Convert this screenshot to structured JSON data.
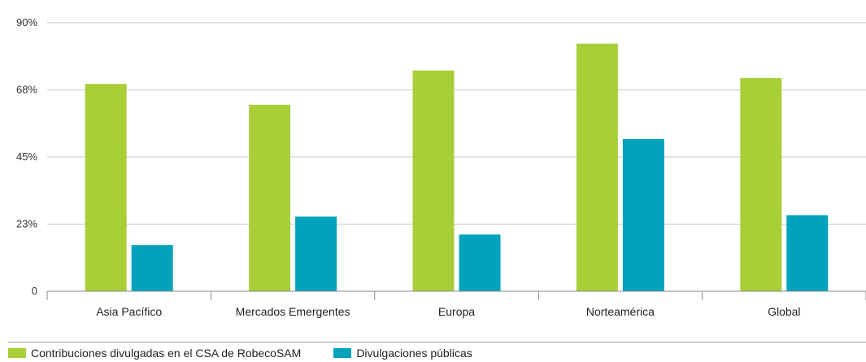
{
  "chart_data": {
    "type": "bar",
    "categories": [
      "Asia Pacífico",
      "Mercados Emergentes",
      "Europa",
      "Norteamérica",
      "Global"
    ],
    "series": [
      {
        "name": "Contribuciones divulgadas en el CSA de RobecoSAM",
        "color": "#a8cf38",
        "values": [
          69.5,
          62.5,
          74,
          83,
          71.5
        ]
      },
      {
        "name": "Divulgaciones públicas",
        "color": "#00a3bb",
        "values": [
          15.5,
          25,
          19,
          51,
          25.5
        ]
      }
    ],
    "yticks": [
      {
        "value": 0,
        "label": "0"
      },
      {
        "value": 22.5,
        "label": "23%"
      },
      {
        "value": 45,
        "label": "45%"
      },
      {
        "value": 67.5,
        "label": "68%"
      },
      {
        "value": 90,
        "label": "90%"
      }
    ],
    "ylim": [
      0,
      90
    ],
    "grid": true,
    "legend_position": "bottom-left",
    "title": "",
    "xlabel": "",
    "ylabel": ""
  }
}
